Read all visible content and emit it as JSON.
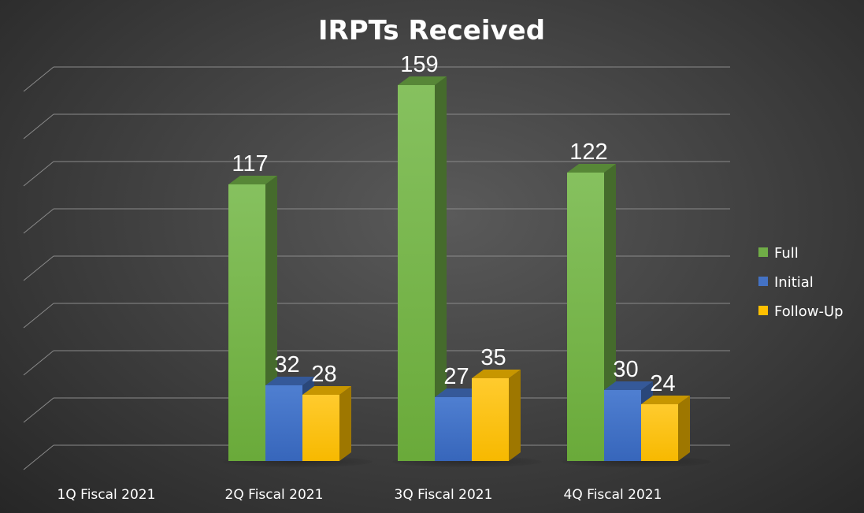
{
  "chart_data": {
    "type": "bar",
    "title": "IRPTs Received",
    "categories": [
      "1Q Fiscal 2021",
      "2Q Fiscal 2021",
      "3Q Fiscal 2021",
      "4Q Fiscal 2021"
    ],
    "series": [
      {
        "name": "Full",
        "values": [
          null,
          117,
          159,
          122
        ],
        "color": "#70ad47"
      },
      {
        "name": "Initial",
        "values": [
          null,
          32,
          27,
          30
        ],
        "color": "#4472c4"
      },
      {
        "name": "Follow-Up",
        "values": [
          null,
          28,
          35,
          24
        ],
        "color": "#ffc000"
      }
    ],
    "ylim": [
      0,
      175
    ],
    "grid": true,
    "legend": "right",
    "style": "3d-clustered-column",
    "background": "#3a3a3a"
  }
}
